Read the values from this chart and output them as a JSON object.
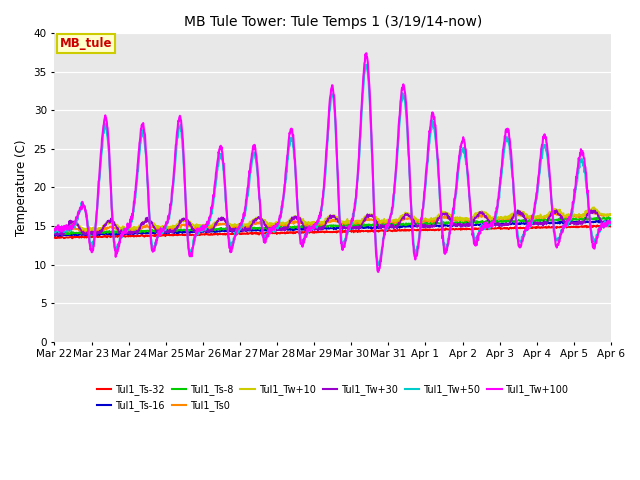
{
  "title": "MB Tule Tower: Tule Temps 1 (3/19/14-now)",
  "ylabel": "Temperature (C)",
  "ylim": [
    0,
    40
  ],
  "yticks": [
    0,
    5,
    10,
    15,
    20,
    25,
    30,
    35,
    40
  ],
  "bg_color": "#e8e8e8",
  "fig_color": "#ffffff",
  "annotation_text": "MB_tule",
  "annotation_color": "#cc0000",
  "annotation_bg": "#ffffcc",
  "annotation_border": "#cccc00",
  "series": [
    {
      "label": "Tul1_Ts-32",
      "color": "#ff0000",
      "lw": 1.2
    },
    {
      "label": "Tul1_Ts-16",
      "color": "#0000cc",
      "lw": 1.2
    },
    {
      "label": "Tul1_Ts-8",
      "color": "#00cc00",
      "lw": 1.2
    },
    {
      "label": "Tul1_Ts0",
      "color": "#ff8800",
      "lw": 1.2
    },
    {
      "label": "Tul1_Tw+10",
      "color": "#cccc00",
      "lw": 1.2
    },
    {
      "label": "Tul1_Tw+30",
      "color": "#9900cc",
      "lw": 1.2
    },
    {
      "label": "Tul1_Tw+50",
      "color": "#00cccc",
      "lw": 1.5
    },
    {
      "label": "Tul1_Tw+100",
      "color": "#ff00ff",
      "lw": 1.5
    }
  ],
  "x_tick_labels": [
    "Mar 22",
    "Mar 23",
    "Mar 24",
    "Mar 25",
    "Mar 26",
    "Mar 27",
    "Mar 28",
    "Mar 29",
    "Mar 30",
    "Mar 31",
    "Apr 1",
    "Apr 2",
    "Apr 3",
    "Apr 4",
    "Apr 5",
    "Apr 6"
  ],
  "spike_days": [
    0.8,
    1.4,
    2.4,
    3.4,
    4.5,
    5.4,
    6.4,
    7.5,
    8.4,
    9.4,
    10.2,
    11.0,
    12.2,
    13.2,
    14.2
  ],
  "spike_h100": [
    4,
    15,
    14,
    15,
    11,
    11,
    13,
    19,
    22,
    18,
    14,
    11,
    12,
    11,
    9
  ],
  "spike_h50": [
    4,
    14,
    13,
    14,
    10,
    10,
    12,
    18,
    21,
    17,
    13,
    10,
    11,
    10,
    8
  ],
  "dip_days": [
    1.0,
    1.6,
    2.6,
    3.6,
    4.7,
    5.6,
    6.6,
    7.7,
    8.7,
    9.7,
    10.5,
    11.3,
    12.5,
    13.5,
    14.5
  ],
  "dip_h100": [
    5,
    7,
    7,
    8,
    6,
    5,
    6,
    8,
    8,
    6,
    5,
    4,
    4,
    4,
    4
  ],
  "dip_h50": [
    4,
    6,
    6,
    7,
    5,
    4,
    5,
    7,
    7,
    5,
    4,
    3,
    3,
    3,
    3
  ],
  "n_points": 1500
}
